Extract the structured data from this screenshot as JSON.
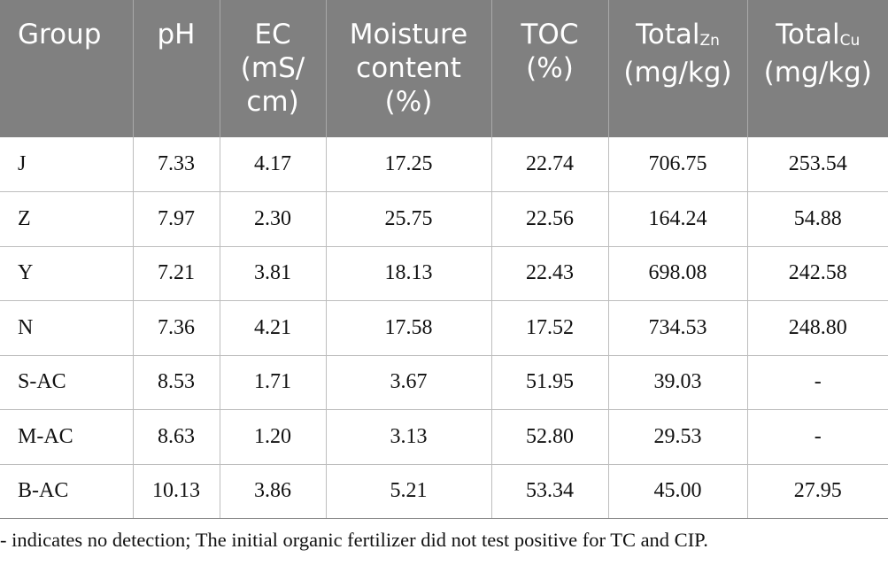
{
  "table": {
    "headers": [
      {
        "main": "Group",
        "sub": "",
        "rest": ""
      },
      {
        "main": "pH",
        "sub": "",
        "rest": ""
      },
      {
        "main": "EC (mS/​cm)",
        "sub": "",
        "rest": ""
      },
      {
        "main": "Moisture content (%)",
        "sub": "",
        "rest": ""
      },
      {
        "main": "TOC (%)",
        "sub": "",
        "rest": ""
      },
      {
        "main": "Total",
        "sub": "Zn",
        "rest": " (mg/​kg)"
      },
      {
        "main": "Total",
        "sub": "Cu",
        "rest": " (mg/​kg)"
      }
    ],
    "rows": [
      [
        "J",
        "7.33",
        "4.17",
        "17.25",
        "22.74",
        "706.75",
        "253.54"
      ],
      [
        "Z",
        "7.97",
        "2.30",
        "25.75",
        "22.56",
        "164.24",
        "54.88"
      ],
      [
        "Y",
        "7.21",
        "3.81",
        "18.13",
        "22.43",
        "698.08",
        "242.58"
      ],
      [
        "N",
        "7.36",
        "4.21",
        "17.58",
        "17.52",
        "734.53",
        "248.80"
      ],
      [
        "S-AC",
        "8.53",
        "1.71",
        "3.67",
        "51.95",
        "39.03",
        "-"
      ],
      [
        "M-AC",
        "8.63",
        "1.20",
        "3.13",
        "52.80",
        "29.53",
        "-"
      ],
      [
        "B-AC",
        "10.13",
        "3.86",
        "5.21",
        "53.34",
        "45.00",
        "27.95"
      ]
    ]
  },
  "footnote": "- indicates no detection; The initial organic fertilizer did not test positive for TC and CIP.",
  "colors": {
    "header_bg": "#808080",
    "header_text": "#ffffff",
    "grid": "#bdbdbd"
  }
}
